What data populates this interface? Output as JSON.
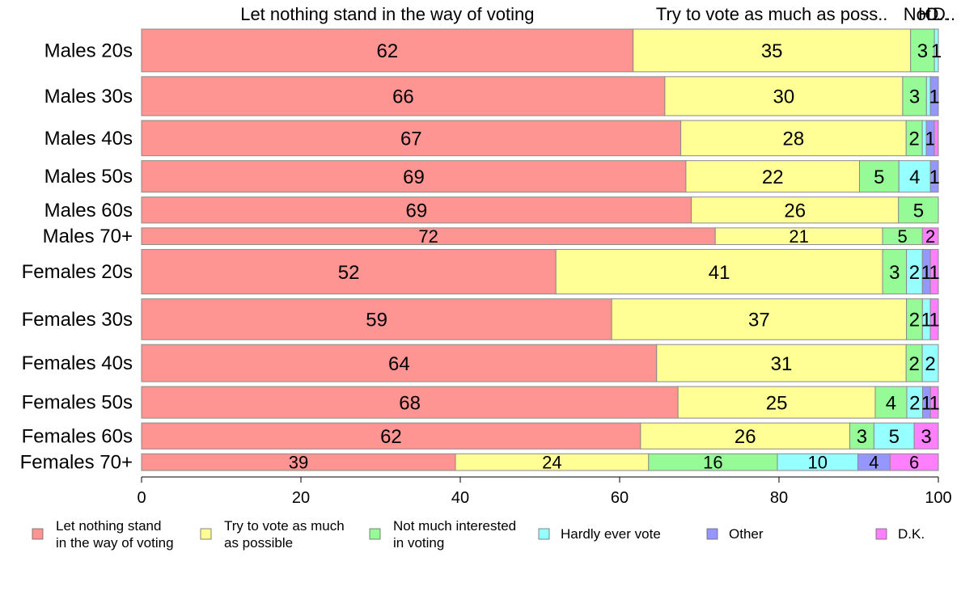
{
  "chart_data": {
    "type": "bar",
    "orientation": "horizontal",
    "stacked": true,
    "categories": [
      "Males 20s",
      "Males 30s",
      "Males 40s",
      "Males 50s",
      "Males 60s",
      "Males 70+",
      "Females 20s",
      "Females 30s",
      "Females 40s",
      "Females 50s",
      "Females 60s",
      "Females 70+"
    ],
    "series": [
      {
        "name": "Let nothing stand in the way of voting",
        "color": "#ff9593",
        "values": [
          62,
          66,
          67,
          69,
          69,
          72,
          52,
          59,
          64,
          68,
          62,
          39
        ]
      },
      {
        "name": "Try to vote as much as possible",
        "color": "#ffff96",
        "values": [
          35,
          30,
          28,
          22,
          26,
          21,
          41,
          37,
          31,
          25,
          26,
          24
        ]
      },
      {
        "name": "Not much interested in voting",
        "color": "#96fa96",
        "values": [
          3,
          3,
          2,
          5,
          5,
          5,
          3,
          2,
          2,
          4,
          3,
          16
        ]
      },
      {
        "name": "Hardly ever vote",
        "color": "#96ffff",
        "values": [
          0.5,
          0.5,
          0.5,
          4,
          0,
          0,
          2,
          1,
          2,
          2,
          5,
          10
        ]
      },
      {
        "name": "Other",
        "color": "#9696ff",
        "values": [
          0,
          1,
          1,
          1,
          0,
          0,
          1,
          0,
          0,
          1,
          0,
          4
        ]
      },
      {
        "name": "D.K.",
        "color": "#ff80ff",
        "values": [
          0,
          0,
          0.5,
          0,
          0,
          2,
          1,
          1,
          0,
          1,
          3,
          6
        ]
      }
    ],
    "data_labels": [
      [
        "62",
        "35",
        "3",
        "1",
        "",
        ""
      ],
      [
        "66",
        "30",
        "3",
        "",
        "1",
        ""
      ],
      [
        "67",
        "28",
        "2",
        "",
        "1",
        ""
      ],
      [
        "69",
        "22",
        "5",
        "4",
        "1",
        ""
      ],
      [
        "69",
        "26",
        "5",
        "",
        "",
        ""
      ],
      [
        "72",
        "21",
        "5",
        "",
        "",
        "2"
      ],
      [
        "52",
        "41",
        "3",
        "2",
        "1",
        "1"
      ],
      [
        "59",
        "37",
        "2",
        "1",
        "",
        "1"
      ],
      [
        "64",
        "31",
        "2",
        "2",
        "",
        ""
      ],
      [
        "68",
        "25",
        "4",
        "2",
        "1",
        "1"
      ],
      [
        "62",
        "26",
        "3",
        "5",
        "",
        "3"
      ],
      [
        "39",
        "24",
        "16",
        "10",
        "4",
        "6"
      ]
    ],
    "bar_weights": [
      1.15,
      1.05,
      0.95,
      0.85,
      0.7,
      0.45,
      1.2,
      1.1,
      1.0,
      0.85,
      0.7,
      0.45
    ],
    "top_labels": [
      "Let nothing stand in the way of voting",
      "Try to vote as much as poss..",
      "Not..",
      "H..",
      "O..",
      "D.."
    ],
    "xlim": [
      0,
      100
    ],
    "xticks": [
      "0",
      "20",
      "40",
      "60",
      "80",
      "100"
    ],
    "legend": {
      "position": "bottom",
      "items": [
        {
          "lines": [
            "Let nothing stand",
            "in the way of voting"
          ],
          "color": "#ff9593"
        },
        {
          "lines": [
            "Try to vote as much",
            "as possible"
          ],
          "color": "#ffff96"
        },
        {
          "lines": [
            "Not much interested",
            "in voting"
          ],
          "color": "#96fa96"
        },
        {
          "lines": [
            "Hardly ever vote"
          ],
          "color": "#96ffff"
        },
        {
          "lines": [
            "Other"
          ],
          "color": "#9696ff"
        },
        {
          "lines": [
            "D.K."
          ],
          "color": "#ff80ff"
        }
      ]
    },
    "title": "",
    "xlabel": "",
    "ylabel": "",
    "grid": false
  }
}
